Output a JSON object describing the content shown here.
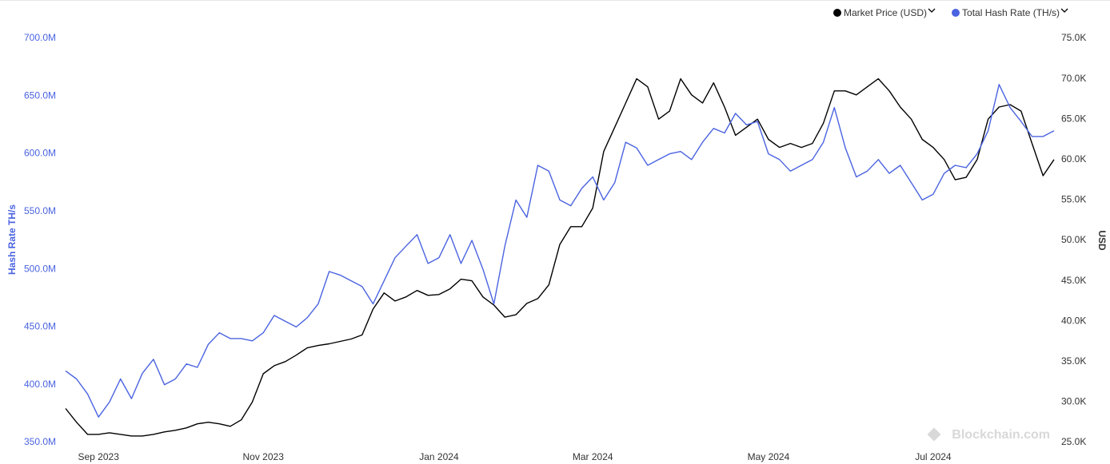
{
  "chart_data": {
    "type": "line",
    "watermark": "Blockchain.com",
    "y_label": "Hash Rate TH/s",
    "y2_label": "USD",
    "legend": "top-right",
    "categories": [
      null,
      null,
      null,
      "Sep 2023",
      null,
      null,
      null,
      null,
      null,
      null,
      null,
      null,
      null,
      null,
      null,
      null,
      null,
      null,
      "Nov 2023",
      null,
      null,
      null,
      null,
      null,
      null,
      null,
      null,
      null,
      null,
      null,
      null,
      null,
      null,
      null,
      "Jan 2024",
      null,
      null,
      null,
      null,
      null,
      null,
      null,
      null,
      null,
      null,
      null,
      null,
      null,
      "Mar 2024",
      null,
      null,
      null,
      null,
      null,
      null,
      null,
      null,
      null,
      null,
      null,
      null,
      null,
      null,
      null,
      "May 2024",
      null,
      null,
      null,
      null,
      null,
      null,
      null,
      null,
      null,
      null,
      null,
      null,
      null,
      null,
      "Jul 2024",
      null,
      null,
      null,
      null,
      null,
      null,
      null,
      null,
      null,
      null,
      null
    ],
    "series": [
      {
        "name": "Market Price (USD)",
        "color": "#000000",
        "axis": "y2",
        "values": [
          29200,
          27500,
          26000,
          26000,
          26200,
          26000,
          25800,
          25800,
          26000,
          26300,
          26500,
          26800,
          27300,
          27500,
          27300,
          27000,
          27800,
          30000,
          33500,
          34500,
          35000,
          35800,
          36700,
          37000,
          37200,
          37500,
          37800,
          38300,
          41500,
          43500,
          42500,
          43000,
          43800,
          43200,
          43300,
          44000,
          45200,
          45000,
          43000,
          42000,
          40500,
          40800,
          42200,
          42800,
          44500,
          49500,
          51700,
          51700,
          54000,
          61000,
          64000,
          67000,
          70000,
          69000,
          65000,
          66000,
          70000,
          68000,
          67000,
          69500,
          66500,
          63000,
          64000,
          65000,
          62500,
          61500,
          62000,
          61500,
          62000,
          64500,
          68500,
          68500,
          68000,
          69000,
          70000,
          68500,
          66500,
          65000,
          62500,
          61500,
          60000,
          57500,
          57800,
          60000,
          65000,
          66500,
          66800,
          66000,
          62000,
          58000,
          60000
        ]
      },
      {
        "name": "Total Hash Rate (TH/s)",
        "color": "#4a63e0",
        "axis": "y",
        "values": [
          412000000,
          405000000,
          392000000,
          372000000,
          385000000,
          405000000,
          388000000,
          410000000,
          422000000,
          400000000,
          405000000,
          418000000,
          415000000,
          435000000,
          445000000,
          440000000,
          440000000,
          438000000,
          445000000,
          460000000,
          455000000,
          450000000,
          458000000,
          470000000,
          498000000,
          495000000,
          490000000,
          485000000,
          470000000,
          490000000,
          510000000,
          520000000,
          530000000,
          505000000,
          510000000,
          530000000,
          505000000,
          525000000,
          500000000,
          470000000,
          520000000,
          560000000,
          545000000,
          590000000,
          585000000,
          560000000,
          555000000,
          570000000,
          580000000,
          560000000,
          575000000,
          610000000,
          605000000,
          590000000,
          595000000,
          600000000,
          602000000,
          595000000,
          610000000,
          622000000,
          618000000,
          635000000,
          625000000,
          628000000,
          600000000,
          595000000,
          585000000,
          590000000,
          595000000,
          610000000,
          640000000,
          605000000,
          580000000,
          585000000,
          595000000,
          583000000,
          590000000,
          575000000,
          560000000,
          565000000,
          583000000,
          590000000,
          588000000,
          600000000,
          620000000,
          660000000,
          640000000,
          628000000,
          615000000,
          615000000,
          620000000
        ]
      }
    ],
    "ylim": [
      350000000,
      700000000
    ],
    "yticks": [
      {
        "value": 350000000,
        "label": "350.0M"
      },
      {
        "value": 400000000,
        "label": "400.0M"
      },
      {
        "value": 450000000,
        "label": "450.0M"
      },
      {
        "value": 500000000,
        "label": "500.0M"
      },
      {
        "value": 550000000,
        "label": "550.0M"
      },
      {
        "value": 600000000,
        "label": "600.0M"
      },
      {
        "value": 650000000,
        "label": "650.0M"
      },
      {
        "value": 700000000,
        "label": "700.0M"
      }
    ],
    "y2lim": [
      25000,
      75000
    ],
    "y2ticks": [
      {
        "value": 25000,
        "label": "25.0K"
      },
      {
        "value": 30000,
        "label": "30.0K"
      },
      {
        "value": 35000,
        "label": "35.0K"
      },
      {
        "value": 40000,
        "label": "40.0K"
      },
      {
        "value": 45000,
        "label": "45.0K"
      },
      {
        "value": 50000,
        "label": "50.0K"
      },
      {
        "value": 55000,
        "label": "55.0K"
      },
      {
        "value": 60000,
        "label": "60.0K"
      },
      {
        "value": 65000,
        "label": "65.0K"
      },
      {
        "value": 70000,
        "label": "70.0K"
      },
      {
        "value": 75000,
        "label": "75.0K"
      }
    ],
    "grid": false
  }
}
